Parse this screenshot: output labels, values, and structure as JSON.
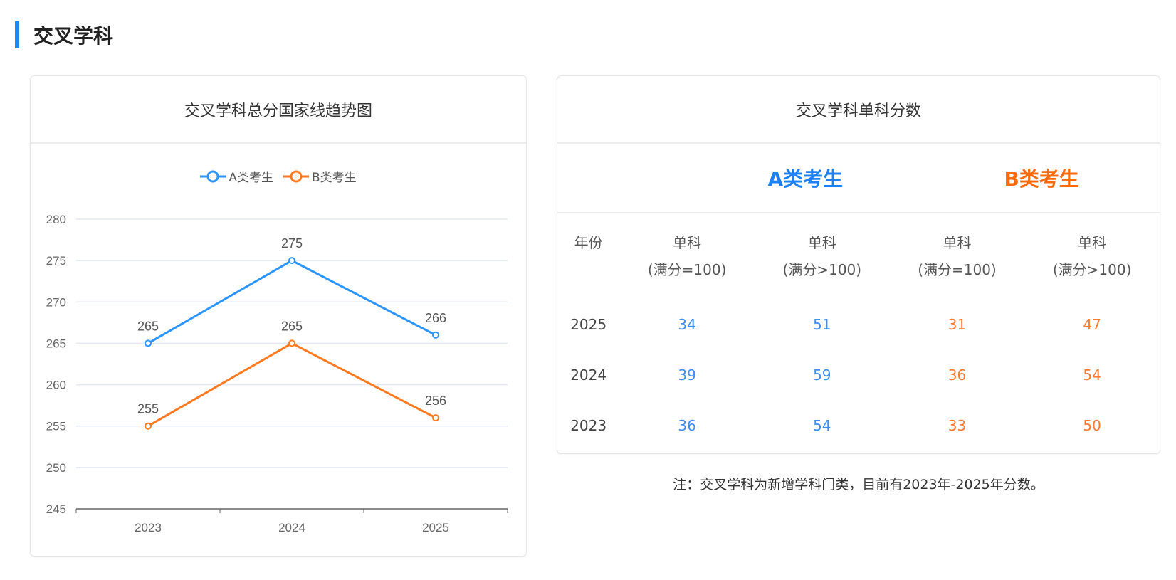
{
  "section_title": "交叉学科",
  "left_card": {
    "title": "交叉学科总分国家线趋势图"
  },
  "chart_data": {
    "type": "line",
    "title": "交叉学科总分国家线趋势图",
    "categories": [
      "2023",
      "2024",
      "2025"
    ],
    "series": [
      {
        "name": "A类考生",
        "values": [
          265,
          275,
          266
        ],
        "color": "#2b95ff"
      },
      {
        "name": "B类考生",
        "values": [
          255,
          265,
          256
        ],
        "color": "#ff7a1f"
      }
    ],
    "ylim": [
      245,
      280
    ],
    "yticks": [
      245,
      250,
      255,
      260,
      265,
      270,
      275,
      280
    ],
    "grid": true,
    "legend": "top-center"
  },
  "right_card": {
    "title": "交叉学科单科分数",
    "cat_a": "A类考生",
    "cat_b": "B类考生",
    "color_a": "#1b7ff5",
    "color_b": "#ff6a0d",
    "headers": [
      [
        "年份",
        ""
      ],
      [
        "单科",
        "(满分=100)"
      ],
      [
        "单科",
        "(满分>100)"
      ],
      [
        "单科",
        "(满分=100)"
      ],
      [
        "单科",
        "(满分>100)"
      ]
    ],
    "rows": [
      [
        "2025",
        "34",
        "51",
        "31",
        "47"
      ],
      [
        "2024",
        "39",
        "59",
        "36",
        "54"
      ],
      [
        "2023",
        "36",
        "54",
        "33",
        "50"
      ]
    ]
  },
  "note": "注：交叉学科为新增学科门类，目前有2023年-2025年分数。"
}
